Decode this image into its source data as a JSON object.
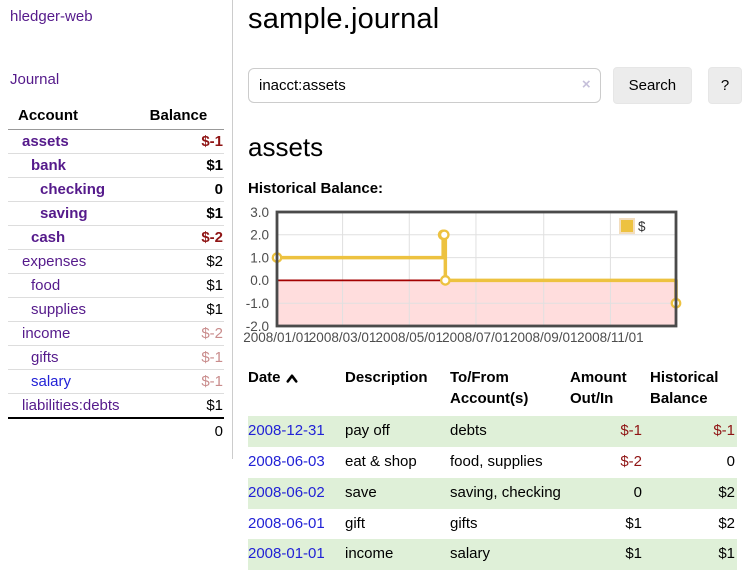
{
  "sidebar": {
    "brand": "hledger-web",
    "journal_label": "Journal",
    "accounts_table": {
      "header_account": "Account",
      "header_balance": "Balance",
      "rows": [
        {
          "name": "assets",
          "depth": 0,
          "emphasis": true,
          "link_style": "visited",
          "balance": "$-1",
          "balance_style": "neg-strong"
        },
        {
          "name": "bank",
          "depth": 1,
          "emphasis": true,
          "link_style": "visited",
          "balance": "$1",
          "balance_style": "normal"
        },
        {
          "name": "checking",
          "depth": 2,
          "emphasis": true,
          "link_style": "visited",
          "balance": "0",
          "balance_style": "normal"
        },
        {
          "name": "saving",
          "depth": 2,
          "emphasis": true,
          "link_style": "visited",
          "balance": "$1",
          "balance_style": "normal"
        },
        {
          "name": "cash",
          "depth": 1,
          "emphasis": true,
          "link_style": "visited",
          "balance": "$-2",
          "balance_style": "neg-strong"
        },
        {
          "name": "expenses",
          "depth": 0,
          "emphasis": false,
          "link_style": "visited",
          "balance": "$2",
          "balance_style": "normal"
        },
        {
          "name": "food",
          "depth": 1,
          "emphasis": false,
          "link_style": "visited",
          "balance": "$1",
          "balance_style": "normal"
        },
        {
          "name": "supplies",
          "depth": 1,
          "emphasis": false,
          "link_style": "visited",
          "balance": "$1",
          "balance_style": "normal"
        },
        {
          "name": "income",
          "depth": 0,
          "emphasis": false,
          "link_style": "visited",
          "balance": "$-2",
          "balance_style": "neg-faded"
        },
        {
          "name": "gifts",
          "depth": 1,
          "emphasis": false,
          "link_style": "visited",
          "balance": "$-1",
          "balance_style": "neg-faded"
        },
        {
          "name": "salary",
          "depth": 1,
          "emphasis": false,
          "link_style": "unvisited",
          "balance": "$-1",
          "balance_style": "neg-faded"
        },
        {
          "name": "liabilities:debts",
          "depth": 0,
          "emphasis": false,
          "link_style": "visited",
          "balance": "$1",
          "balance_style": "normal"
        }
      ],
      "total": "0"
    }
  },
  "header": {
    "title": "sample.journal"
  },
  "search": {
    "value": "inacct:assets",
    "clear_icon": "×",
    "button_label": "Search",
    "help_label": "?"
  },
  "account_page": {
    "title": "assets",
    "chart_label": "Historical Balance:"
  },
  "chart_data": {
    "type": "line",
    "style": "step-post",
    "title": "Historical Balance:",
    "series": [
      {
        "name": "$",
        "color": "#edc240",
        "points": [
          [
            "2008-01-01",
            1
          ],
          [
            "2008-06-01",
            2
          ],
          [
            "2008-06-02",
            2
          ],
          [
            "2008-06-03",
            0
          ],
          [
            "2008-12-31",
            -1
          ]
        ]
      }
    ],
    "x_range": [
      "2008-01-01",
      "2008-12-31"
    ],
    "x_ticks": [
      "2008/01/01",
      "2008/03/01",
      "2008/05/01",
      "2008/07/01",
      "2008/09/01",
      "2008/11/01"
    ],
    "y_ticks": [
      3.0,
      2.0,
      1.0,
      0.0,
      -1.0,
      -2.0
    ],
    "ylim": [
      -2,
      3
    ],
    "grid": true,
    "legend_position": "top-right",
    "legend_label": "$",
    "negative_region_color": "#ffdddd",
    "zero_line_color": "#a40000",
    "grid_color": "#e0e0e0",
    "border_color": "#4a4a4a",
    "tick_label_color": "#4d4d4d"
  },
  "register_table": {
    "headers": {
      "date": "Date",
      "description": "Description",
      "accounts": "To/From Account(s)",
      "amount": "Amount Out/In",
      "balance": "Historical Balance"
    },
    "sort": {
      "column": "date",
      "direction": "ascending"
    },
    "rows": [
      {
        "date": "2008-12-31",
        "description": "pay off",
        "accounts": "debts",
        "amount": "$-1",
        "amount_style": "neg-strong",
        "balance": "$-1",
        "balance_style": "neg-strong"
      },
      {
        "date": "2008-06-03",
        "description": "eat & shop",
        "accounts": "food, supplies",
        "amount": "$-2",
        "amount_style": "neg-strong",
        "balance": "0",
        "balance_style": "normal"
      },
      {
        "date": "2008-06-02",
        "description": "save",
        "accounts": "saving, checking",
        "amount": "0",
        "amount_style": "normal",
        "balance": "$2",
        "balance_style": "normal"
      },
      {
        "date": "2008-06-01",
        "description": "gift",
        "accounts": "gifts",
        "amount": "$1",
        "amount_style": "normal",
        "balance": "$2",
        "balance_style": "normal"
      },
      {
        "date": "2008-01-01",
        "description": "income",
        "accounts": "salary",
        "amount": "$1",
        "amount_style": "normal",
        "balance": "$1",
        "balance_style": "normal"
      }
    ]
  },
  "colors": {
    "purple_link": "#551a8b",
    "blue_link": "#2222d6",
    "negative_strong": "#8f1414",
    "negative_faded": "#c98c8c",
    "row_stripe_green": "#dff0d8",
    "button_gray": "#ececec",
    "clear_icon_lavender": "#c6c0da",
    "chart_line_gold": "#edc240"
  }
}
